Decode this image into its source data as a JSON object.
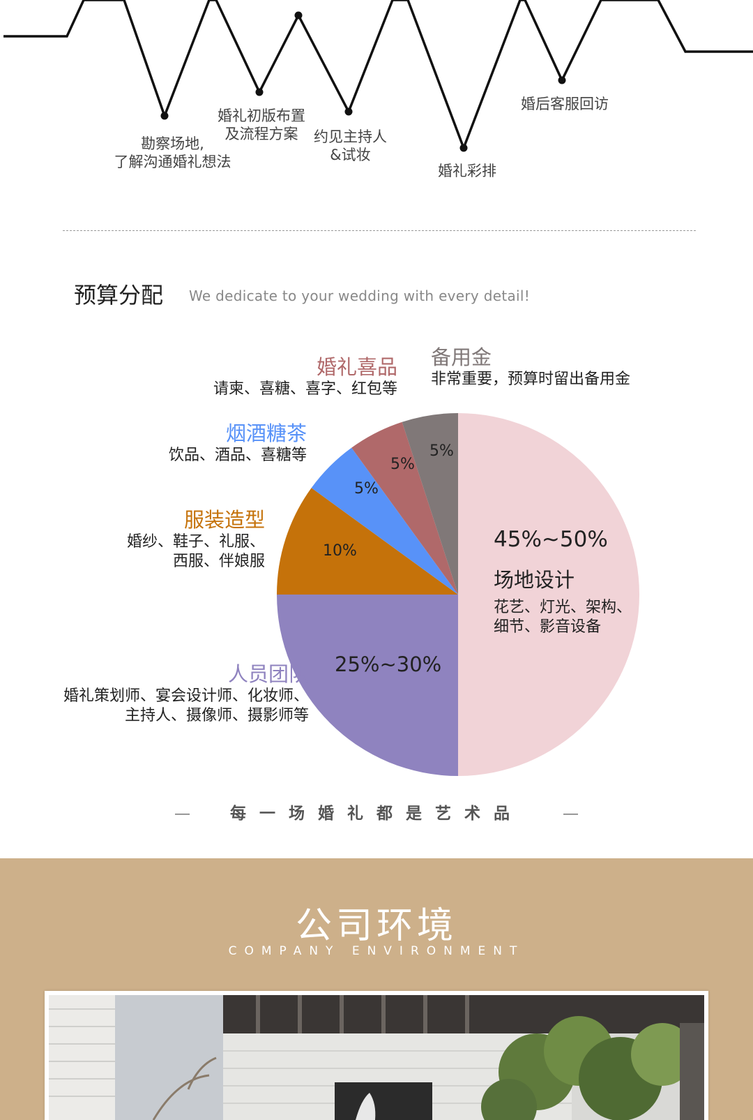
{
  "timeline": {
    "steps": [
      {
        "lines": [
          "勘察场地,",
          "了解沟通婚礼想法"
        ]
      },
      {
        "lines": [
          "婚礼初版布置",
          "及流程方案"
        ]
      },
      {
        "lines": [
          "约见主持人",
          "&试妆"
        ]
      },
      {
        "lines": [
          "婚礼彩排"
        ]
      },
      {
        "lines": [
          "婚后客服回访"
        ]
      }
    ]
  },
  "budget": {
    "title": "预算分配",
    "subtitle": "We dedicate to your wedding with every detail!"
  },
  "chart_data": {
    "type": "pie",
    "title": "预算分配",
    "slices": [
      {
        "label": "场地设计",
        "value": 50,
        "value_label": "45%~50%",
        "desc_lines": [
          "花艺、灯光、架构、",
          "细节、影音设备"
        ],
        "color": "#f1d3d7"
      },
      {
        "label": "人员团队",
        "value": 25,
        "value_label": "25%~30%",
        "desc_lines": [
          "婚礼策划师、宴会设计师、化妆师、",
          "主持人、摄像师、摄影师等"
        ],
        "color": "#8f83bf"
      },
      {
        "label": "服装造型",
        "value": 10,
        "value_label": "10%",
        "desc_lines": [
          "婚纱、鞋子、礼服、",
          "西服、伴娘服"
        ],
        "color": "#c5720a"
      },
      {
        "label": "烟酒糖茶",
        "value": 5,
        "value_label": "5%",
        "desc_lines": [
          "饮品、酒品、喜糖等"
        ],
        "color": "#5892f8"
      },
      {
        "label": "婚礼喜品",
        "value": 5,
        "value_label": "5%",
        "desc_lines": [
          "请柬、喜糖、喜字、红包等"
        ],
        "color": "#b0696a"
      },
      {
        "label": "备用金",
        "value": 5,
        "value_label": "5%",
        "desc_lines": [
          "非常重要，预算时留出备用金"
        ],
        "color": "#807878"
      }
    ],
    "label_colors": {
      "场地设计": "#222222",
      "人员团队": "#8f83bf",
      "服装造型": "#c5720a",
      "烟酒糖茶": "#5892f8",
      "婚礼喜品": "#b0696a",
      "备用金": "#807878"
    }
  },
  "slogan": {
    "left_dash": "—",
    "text": "每一场婚礼都是艺术品",
    "right_dash": "—"
  },
  "company": {
    "title": "公司环境",
    "subtitle": "COMPANY ENVIRONMENT"
  }
}
